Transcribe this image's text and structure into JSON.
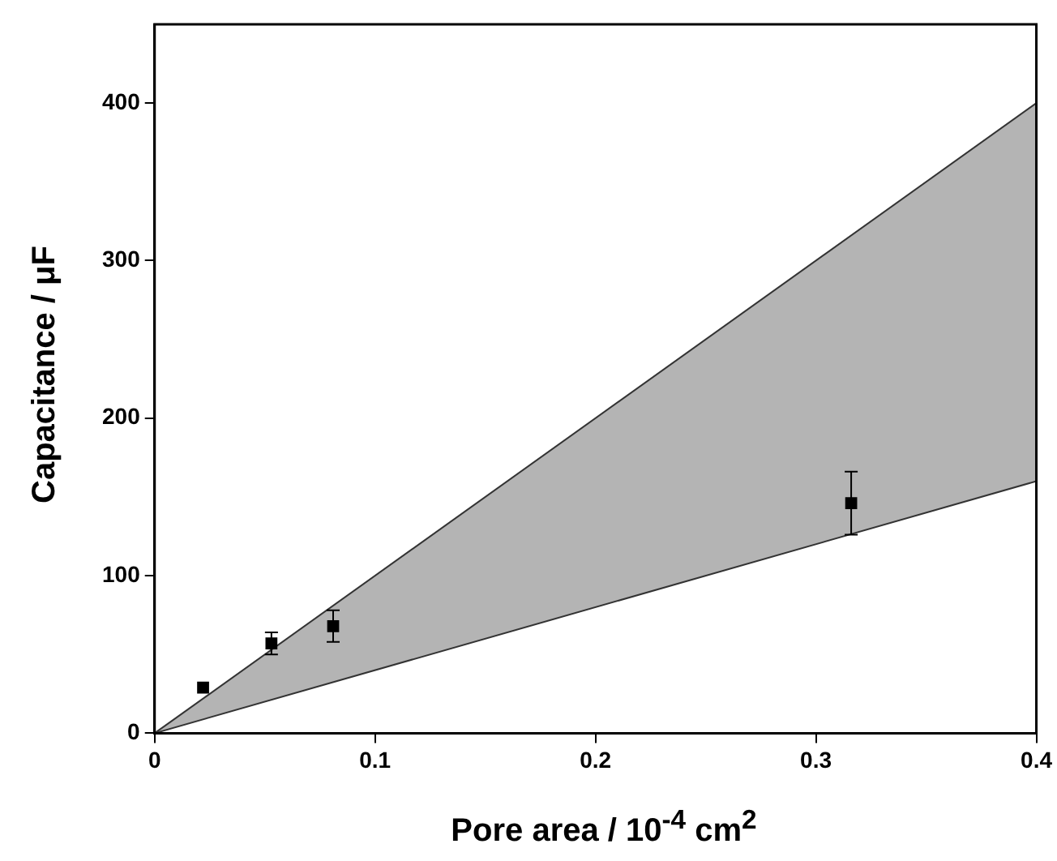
{
  "chart_data": {
    "type": "scatter",
    "xlabel": "Pore area / 10$^{-4}$ cm$^{2}$",
    "ylabel": "Capacitance / μF",
    "xlim": [
      0,
      0.4
    ],
    "xticks": [
      0,
      0.1,
      0.2,
      0.3,
      0.4
    ],
    "ylim": [
      0,
      450
    ],
    "yticks": [
      0,
      100,
      200,
      300,
      400
    ],
    "grid": false,
    "legend": false,
    "series": [
      {
        "type": "line",
        "marker": "none",
        "color": "#333333",
        "x": [
          0,
          0.4
        ],
        "values": [
          0,
          160
        ]
      },
      {
        "type": "area",
        "marker": "none",
        "color": "#b4b4b4",
        "x": [
          0,
          0.4
        ],
        "values": [
          0,
          400
        ]
      },
      {
        "type": "scatter",
        "marker": "square",
        "color": "#000000",
        "x": [
          0.022,
          0.053,
          0.081,
          0.316
        ],
        "values": [
          29,
          57,
          68,
          146
        ],
        "errors": [
          null,
          7,
          10,
          20
        ]
      }
    ]
  }
}
